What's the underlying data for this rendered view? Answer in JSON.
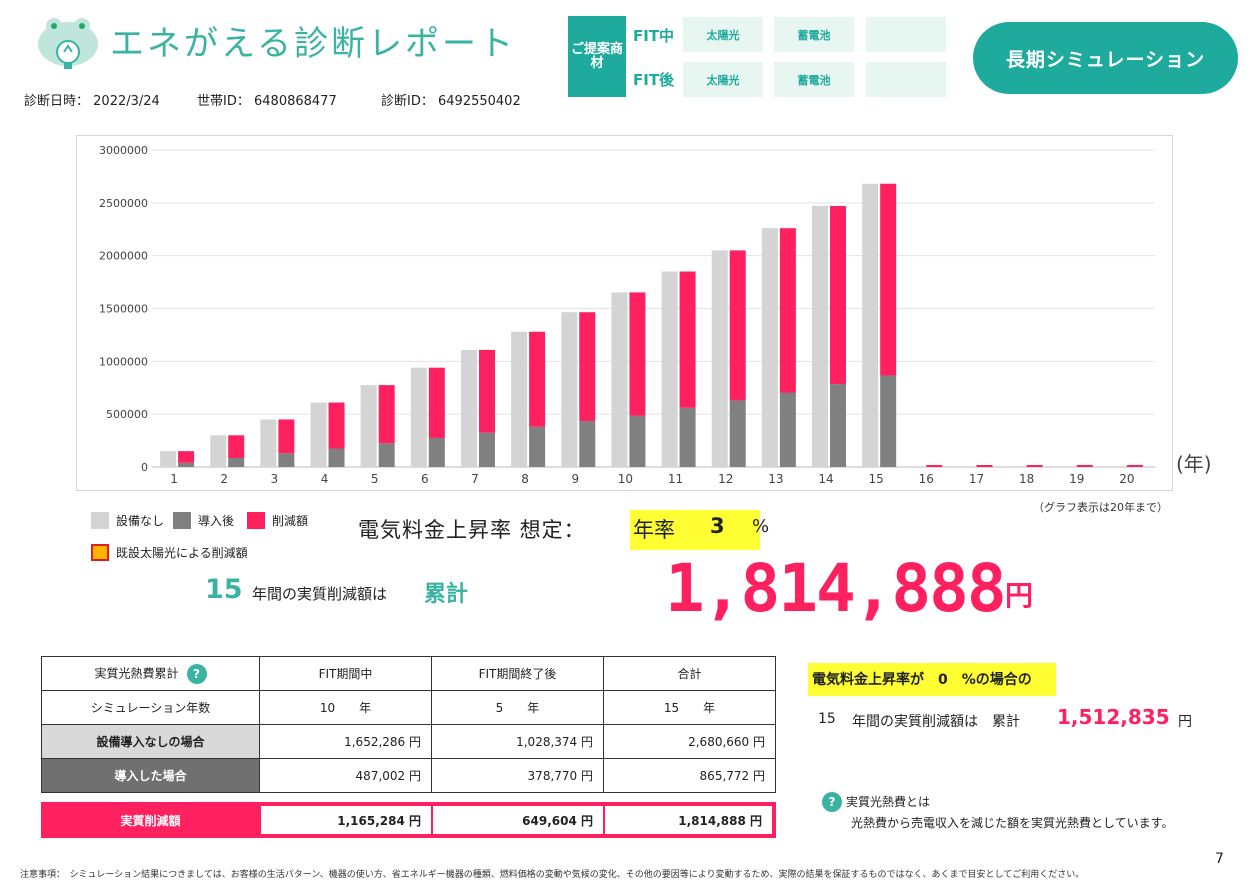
{
  "header": {
    "brand_title": "エネがえる診断レポート",
    "diag_date_label": "診断日時：",
    "diag_date": "2022/3/24",
    "household_id_label": "世帯ID：",
    "household_id": "6480868477",
    "diag_id_label": "診断ID：",
    "diag_id": "6492550402",
    "proposal_label": "ご提案商材",
    "fit_during_label": "FIT中",
    "fit_after_label": "FIT後",
    "fit_during_items": [
      "太陽光",
      "蓄電池",
      ""
    ],
    "fit_after_items": [
      "太陽光",
      "蓄電池",
      ""
    ],
    "simulation_button": "長期シミュレーション"
  },
  "legend": {
    "no_equipment": "設備なし",
    "after_install": "導入後",
    "reduction": "削減額",
    "existing_solar": "既設太陽光による削減額",
    "colors": {
      "no_equipment": "#d4d4d4",
      "after_install": "#808080",
      "reduction": "#ff2060",
      "existing_solar": "#ffb400",
      "existing_solar_border": "#e02020"
    }
  },
  "chart_note": "（グラフ表示は20年まで）",
  "year_unit": "(年)",
  "chart_data": {
    "type": "bar",
    "categories": [
      "1",
      "2",
      "3",
      "4",
      "5",
      "6",
      "7",
      "8",
      "9",
      "10",
      "11",
      "12",
      "13",
      "14",
      "15",
      "16",
      "17",
      "18",
      "19",
      "20"
    ],
    "series": [
      {
        "name": "設備なし",
        "values": [
          150000,
          300000,
          450000,
          610000,
          775000,
          940000,
          1108000,
          1280000,
          1465000,
          1652286,
          1850000,
          2050000,
          2260000,
          2470000,
          2680660,
          0,
          0,
          0,
          0,
          0
        ]
      },
      {
        "name": "導入後",
        "values": [
          40000,
          85000,
          130000,
          175000,
          225000,
          275000,
          325000,
          380000,
          435000,
          487002,
          560000,
          630000,
          705000,
          785000,
          865772,
          0,
          0,
          0,
          0,
          0
        ]
      },
      {
        "name": "削減額",
        "values": [
          110000,
          215000,
          320000,
          435000,
          550000,
          665000,
          783000,
          900000,
          1030000,
          1165284,
          1290000,
          1420000,
          1555000,
          1685000,
          1814888,
          0,
          0,
          0,
          0,
          0
        ]
      }
    ],
    "ylim": [
      0,
      3000000
    ],
    "yticks": [
      "0",
      "500000",
      "1000000",
      "1500000",
      "2000000",
      "2500000",
      "3000000"
    ],
    "grid": true
  },
  "assumption": {
    "label": "電気料金上昇率 想定：",
    "rate_label": "年率",
    "rate_value": "3",
    "rate_unit": "%"
  },
  "summary_line": {
    "years": "15",
    "text": "年間の実質削減額は",
    "cumulative_label": "累計",
    "amount": "1,814,888",
    "yen": "円"
  },
  "table": {
    "header": [
      "実質光熱費累計",
      "FIT期間中",
      "FIT期間終了後",
      "合計"
    ],
    "help_icon": "?",
    "rows": [
      {
        "label": "シミュレーション年数",
        "cells": [
          "10　　年",
          "5　　年",
          "15　　年"
        ]
      },
      {
        "label": "設備導入なしの場合",
        "cells": [
          "1,652,286 円",
          "1,028,374 円",
          "2,680,660 円"
        ]
      },
      {
        "label": "導入した場合",
        "cells": [
          "487,002 円",
          "378,770 円",
          "865,772 円"
        ]
      }
    ],
    "savings_label": "実質削減額",
    "savings": [
      "1,165,284 円",
      "649,604 円",
      "1,814,888 円"
    ]
  },
  "zero_rate": {
    "heading": "電気料金上昇率が　0　%の場合の",
    "years": "15",
    "text": "年間の実質削減額は　累計",
    "amount": "1,512,835",
    "yen": "円"
  },
  "definition": {
    "icon": "?",
    "title": "実質光熱費とは",
    "body": "光熱費から売電収入を減じた額を実質光熱費としています。"
  },
  "page_number": "7",
  "footer_note": "注意事項：　シミュレーション結果につきましては、お客様の生活パターン、機器の使い方、省エネルギー機器の種類、燃料価格の変動や気候の変化、その他の要因等により変動するため、実際の結果を保証するものではなく、あくまで目安としてご利用ください。"
}
